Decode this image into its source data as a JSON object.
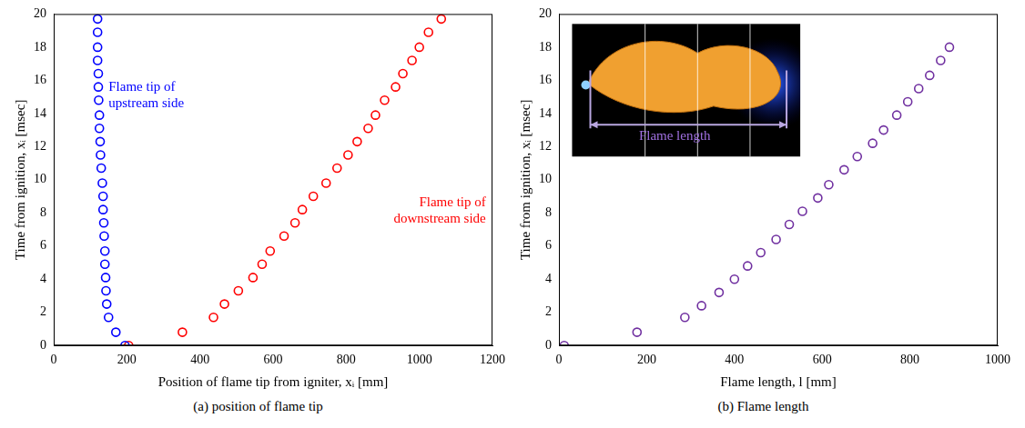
{
  "chart_data": [
    {
      "type": "scatter",
      "caption": "(a) position of flame tip",
      "x_label": "Position of flame tip from igniter, xᵢ [mm]",
      "y_label": "Time from ignition, xᵢ [msec]",
      "xlim": [
        0,
        1200
      ],
      "xticks": [
        0,
        200,
        400,
        600,
        800,
        1000,
        1200
      ],
      "ylim": [
        0,
        20
      ],
      "yticks": [
        0,
        2,
        4,
        6,
        8,
        10,
        12,
        14,
        16,
        18,
        20
      ],
      "grid": false,
      "series": [
        {
          "name": "Flame tip of upstream side",
          "color": "#0000ff",
          "marker": "open_circle",
          "x": [
            195,
            170,
            150,
            145,
            143,
            142,
            140,
            140,
            138,
            137,
            135,
            135,
            133,
            130,
            128,
            127,
            125,
            125,
            123,
            122,
            122,
            120,
            120,
            120,
            120
          ],
          "values": [
            0,
            0.8,
            1.7,
            2.5,
            3.3,
            4.1,
            4.9,
            5.7,
            6.6,
            7.4,
            8.2,
            9.0,
            9.8,
            10.7,
            11.5,
            12.3,
            13.1,
            13.9,
            14.8,
            15.6,
            16.4,
            17.2,
            18.0,
            18.9,
            19.7
          ]
        },
        {
          "name": "Flame tip of downstream side",
          "color": "#ff0000",
          "marker": "open_circle",
          "x": [
            205,
            352,
            437,
            467,
            505,
            545,
            570,
            592,
            630,
            660,
            680,
            710,
            745,
            775,
            805,
            830,
            860,
            880,
            905,
            935,
            955,
            980,
            1000,
            1025,
            1060
          ],
          "values": [
            0,
            0.8,
            1.7,
            2.5,
            3.3,
            4.1,
            4.9,
            5.7,
            6.6,
            7.4,
            8.2,
            9.0,
            9.8,
            10.7,
            11.5,
            12.3,
            13.1,
            13.9,
            14.8,
            15.6,
            16.4,
            17.2,
            18.0,
            18.9,
            19.7
          ]
        }
      ]
    },
    {
      "type": "scatter",
      "caption": "(b) Flame length",
      "x_label": "Flame length, l [mm]",
      "y_label": "Time from ignition, xᵢ [msec]",
      "xlim": [
        0,
        1000
      ],
      "xticks": [
        0,
        200,
        400,
        600,
        800,
        1000
      ],
      "ylim": [
        0,
        20
      ],
      "yticks": [
        0,
        2,
        4,
        6,
        8,
        10,
        12,
        14,
        16,
        18,
        20
      ],
      "grid": false,
      "inset_label": "Flame length",
      "series": [
        {
          "color": "#7030a0",
          "marker": "open_circle",
          "x": [
            12,
            178,
            287,
            325,
            365,
            400,
            430,
            460,
            495,
            525,
            555,
            590,
            615,
            650,
            680,
            715,
            740,
            770,
            795,
            820,
            845,
            870,
            890
          ],
          "values": [
            0,
            0.8,
            1.7,
            2.4,
            3.2,
            4.0,
            4.8,
            5.6,
            6.4,
            7.3,
            8.1,
            8.9,
            9.7,
            10.6,
            11.4,
            12.2,
            13.0,
            13.9,
            14.7,
            15.5,
            16.3,
            17.2,
            18.0
          ]
        }
      ]
    }
  ]
}
